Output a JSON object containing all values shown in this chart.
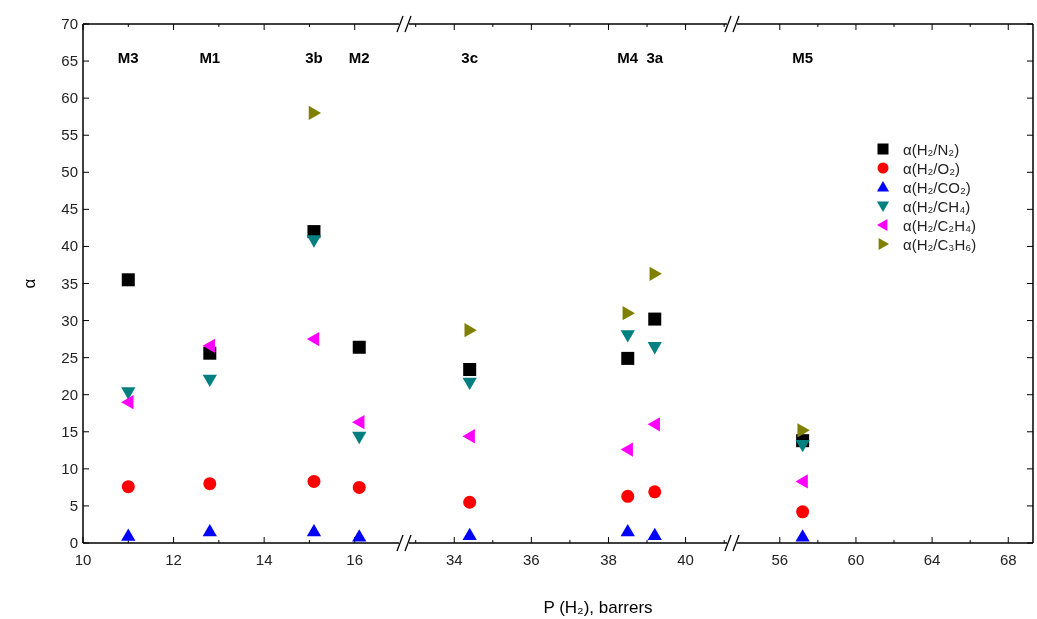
{
  "chart_data": [
    {
      "type": "scatter",
      "ylabel": "α",
      "x": [
        11.0,
        12.8,
        15.1,
        16.1
      ],
      "xlim": [
        10,
        17
      ],
      "xticks": [
        10,
        {
          "value": 11,
          "label": null
        },
        12,
        {
          "value": 13,
          "label": null
        },
        14,
        {
          "value": 15,
          "label": null
        },
        16
      ],
      "ylim": [
        0,
        70
      ],
      "yticks": [
        0,
        5,
        10,
        15,
        20,
        25,
        30,
        35,
        40,
        45,
        50,
        55,
        60,
        65,
        70
      ],
      "grid": false,
      "legend": false,
      "annotations": [
        "M3",
        "M1",
        "3b",
        "M2"
      ],
      "series": [
        {
          "color": "#000000",
          "marker": "square",
          "values": [
            35.5,
            25.6,
            42.0,
            26.4
          ]
        },
        {
          "color": "#ff0000",
          "marker": "circle",
          "values": [
            7.6,
            8.0,
            8.3,
            7.5
          ]
        },
        {
          "color": "#0000ff",
          "marker": "triangle",
          "values": [
            1.0,
            1.6,
            1.6,
            0.9
          ]
        },
        {
          "color": "#008080",
          "marker": "triangle-down",
          "values": [
            20.3,
            22.0,
            40.8,
            14.3
          ]
        },
        {
          "color": "#ff00ff",
          "marker": "triangle-left",
          "values": [
            19.0,
            26.6,
            27.5,
            16.3
          ]
        },
        {
          "color": "#808000",
          "marker": "triangle-right",
          "values": [
            null,
            null,
            58.0,
            null
          ]
        }
      ]
    },
    {
      "type": "scatter",
      "xlabel": "P (H₂), barrers",
      "x": [
        34.4,
        38.5,
        39.2
      ],
      "xlim": [
        32.8,
        41.1
      ],
      "xticks": [
        {
          "value": 33,
          "label": null
        },
        34,
        {
          "value": 35,
          "label": null
        },
        36,
        {
          "value": 37,
          "label": null
        },
        38,
        {
          "value": 39,
          "label": null
        },
        40,
        {
          "value": 41,
          "label": null
        }
      ],
      "ylim": [
        0,
        70
      ],
      "yticks": [
        0,
        5,
        10,
        15,
        20,
        25,
        30,
        35,
        40,
        45,
        50,
        55,
        60,
        65,
        70
      ],
      "grid": false,
      "legend": false,
      "tick_labels": "x",
      "annotations": [
        "3c",
        "M4",
        "3a"
      ],
      "series": [
        {
          "color": "#000000",
          "marker": "square",
          "values": [
            23.4,
            24.9,
            30.2
          ]
        },
        {
          "color": "#ff0000",
          "marker": "circle",
          "values": [
            5.5,
            6.3,
            6.9
          ]
        },
        {
          "color": "#0000ff",
          "marker": "triangle",
          "values": [
            1.1,
            1.6,
            1.1
          ]
        },
        {
          "color": "#008080",
          "marker": "triangle-down",
          "values": [
            21.6,
            28.0,
            26.4
          ]
        },
        {
          "color": "#ff00ff",
          "marker": "triangle-left",
          "values": [
            14.4,
            12.6,
            16.0
          ]
        },
        {
          "color": "#808000",
          "marker": "triangle-right",
          "values": [
            28.7,
            31.0,
            36.3
          ]
        }
      ]
    },
    {
      "type": "scatter",
      "x": [
        57.2
      ],
      "xlim": [
        53.7,
        69.3
      ],
      "xticks": [
        56,
        {
          "value": 58,
          "label": null
        },
        60,
        {
          "value": 62,
          "label": null
        },
        64,
        {
          "value": 66,
          "label": null
        },
        68
      ],
      "ylim": [
        0,
        70
      ],
      "yticks": [
        0,
        5,
        10,
        15,
        20,
        25,
        30,
        35,
        40,
        45,
        50,
        55,
        60,
        65,
        70
      ],
      "grid": false,
      "legend": "top right",
      "tick_labels": "x",
      "annotations": [
        "M5"
      ],
      "series": [
        {
          "name": "α(H₂/N₂)",
          "color": "#000000",
          "marker": "square",
          "values": [
            13.8
          ]
        },
        {
          "name": "α(H₂/O₂)",
          "color": "#ff0000",
          "marker": "circle",
          "values": [
            4.2
          ]
        },
        {
          "name": "α(H₂/CO₂)",
          "color": "#0000ff",
          "marker": "triangle",
          "values": [
            0.9
          ]
        },
        {
          "name": "α(H₂/CH₄)",
          "color": "#008080",
          "marker": "triangle-down",
          "values": [
            13.2
          ]
        },
        {
          "name": "α(H₂/C₂H₄)",
          "color": "#ff00ff",
          "marker": "triangle-left",
          "values": [
            8.3
          ]
        },
        {
          "name": "α(H₂/C₃H₆)",
          "color": "#808000",
          "marker": "triangle-right",
          "values": [
            15.2
          ]
        }
      ]
    }
  ]
}
